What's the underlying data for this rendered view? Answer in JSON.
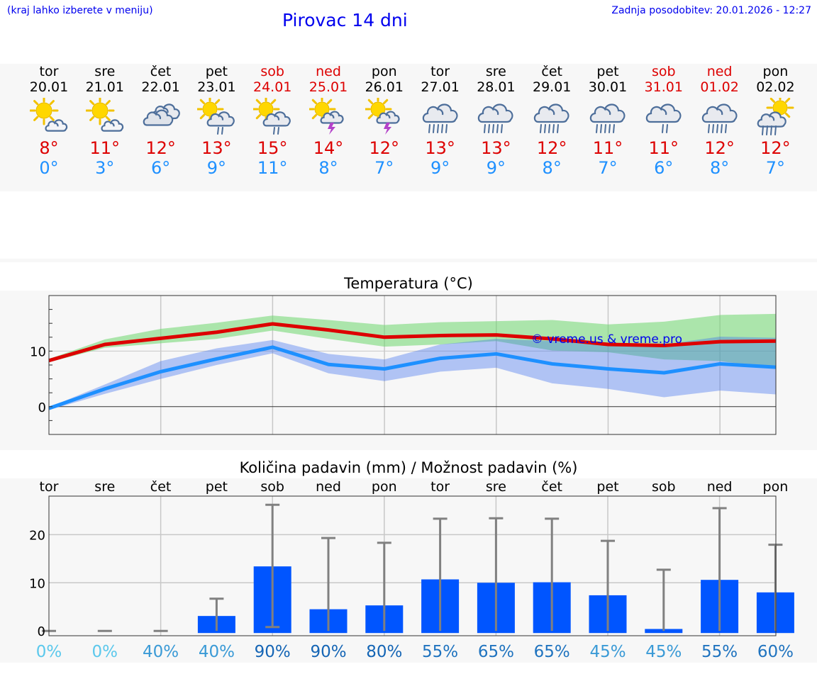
{
  "header": {
    "hint": "(kraj lahko izberete v meniju)",
    "title": "Pirovac 14 dni",
    "updated": "Zadnja posodobitev: 20.01.2026 - 12:27"
  },
  "colors": {
    "max": "#dd0000",
    "min": "#1e90ff",
    "link": "#0000ee",
    "bar": "#0055ff"
  },
  "days": [
    {
      "name": "tor",
      "date": "20.01",
      "icon": "partly-sunny-icon",
      "max": "8°",
      "min": "0°",
      "weekend": false
    },
    {
      "name": "sre",
      "date": "21.01",
      "icon": "partly-sunny-icon",
      "max": "11°",
      "min": "3°",
      "weekend": false
    },
    {
      "name": "čet",
      "date": "22.01",
      "icon": "cloudy-icon",
      "max": "12°",
      "min": "6°",
      "weekend": false
    },
    {
      "name": "pet",
      "date": "23.01",
      "icon": "sun-rain-icon",
      "max": "13°",
      "min": "9°",
      "weekend": false
    },
    {
      "name": "sob",
      "date": "24.01",
      "icon": "sun-rain-icon",
      "max": "15°",
      "min": "11°",
      "weekend": true
    },
    {
      "name": "ned",
      "date": "25.01",
      "icon": "sun-thunder-icon",
      "max": "14°",
      "min": "8°",
      "weekend": true
    },
    {
      "name": "pon",
      "date": "26.01",
      "icon": "sun-thunder-icon",
      "max": "12°",
      "min": "7°",
      "weekend": false
    },
    {
      "name": "tor",
      "date": "27.01",
      "icon": "rain-icon",
      "max": "13°",
      "min": "9°",
      "weekend": false
    },
    {
      "name": "sre",
      "date": "28.01",
      "icon": "rain-icon",
      "max": "13°",
      "min": "9°",
      "weekend": false
    },
    {
      "name": "čet",
      "date": "29.01",
      "icon": "rain-icon",
      "max": "12°",
      "min": "8°",
      "weekend": false
    },
    {
      "name": "pet",
      "date": "30.01",
      "icon": "rain-icon",
      "max": "11°",
      "min": "7°",
      "weekend": false
    },
    {
      "name": "sob",
      "date": "31.01",
      "icon": "light-rain-icon",
      "max": "11°",
      "min": "6°",
      "weekend": true
    },
    {
      "name": "ned",
      "date": "01.02",
      "icon": "rain-icon",
      "max": "12°",
      "min": "8°",
      "weekend": true
    },
    {
      "name": "pon",
      "date": "02.02",
      "icon": "sun-heavy-rain-icon",
      "max": "12°",
      "min": "7°",
      "weekend": false
    }
  ],
  "chart_data": [
    {
      "type": "line",
      "title": "Temperatura (°C)",
      "watermark": "© vreme.us & vreme.pro",
      "categories": [
        "20.01",
        "21.01",
        "22.01",
        "23.01",
        "24.01",
        "25.01",
        "26.01",
        "27.01",
        "28.01",
        "29.01",
        "30.01",
        "31.01",
        "01.02",
        "02.02"
      ],
      "ylim": [
        -5,
        20
      ],
      "yticks": [
        "0",
        "10"
      ],
      "series": [
        {
          "name": "max",
          "values": [
            8.3,
            11.2,
            12.3,
            13.4,
            14.9,
            13.8,
            12.5,
            12.8,
            12.9,
            12.2,
            11.2,
            11.0,
            11.7,
            11.8
          ]
        },
        {
          "name": "min",
          "values": [
            -0.3,
            3.2,
            6.3,
            8.6,
            10.7,
            7.6,
            6.8,
            8.7,
            9.5,
            7.7,
            6.8,
            6.1,
            7.7,
            7.1
          ]
        },
        {
          "name": "max_range_high",
          "values": [
            8.6,
            12.1,
            14.0,
            15.1,
            16.4,
            15.6,
            14.7,
            15.2,
            15.4,
            15.6,
            14.8,
            15.3,
            16.5,
            16.7
          ]
        },
        {
          "name": "max_range_low",
          "values": [
            8.0,
            10.6,
            11.4,
            12.2,
            13.7,
            12.2,
            10.8,
            11.2,
            11.8,
            10.1,
            9.8,
            8.5,
            8.2,
            6.9
          ]
        },
        {
          "name": "min_range_high",
          "values": [
            -0.1,
            4.0,
            8.2,
            10.5,
            12.0,
            9.5,
            8.5,
            11.2,
            12.2,
            11.8,
            11.3,
            11.2,
            12.6,
            12.4
          ]
        },
        {
          "name": "min_range_low",
          "values": [
            -0.6,
            2.3,
            5.0,
            7.5,
            9.6,
            6.0,
            4.6,
            6.3,
            7.0,
            4.2,
            3.2,
            1.7,
            2.9,
            2.2
          ]
        }
      ]
    },
    {
      "type": "bar",
      "title": "Količina padavin (mm) / Možnost padavin (%)",
      "categories": [
        "tor",
        "sre",
        "čet",
        "pet",
        "sob",
        "ned",
        "pon",
        "tor",
        "sre",
        "čet",
        "pet",
        "sob",
        "ned",
        "pon"
      ],
      "ylim": [
        -1,
        28
      ],
      "yticks": [
        "0",
        "10",
        "20"
      ],
      "values": [
        0,
        0,
        0,
        3.1,
        13.4,
        4.5,
        5.3,
        10.7,
        10.0,
        10.1,
        7.4,
        0.4,
        10.6,
        8.0
      ],
      "error_low": [
        0,
        0,
        0,
        0,
        0.8,
        0,
        0,
        0,
        0,
        0,
        0,
        0,
        0,
        0
      ],
      "error_high": [
        0,
        0,
        0,
        6.7,
        26.2,
        19.3,
        18.3,
        23.3,
        23.4,
        23.3,
        18.7,
        12.7,
        25.5,
        17.9
      ],
      "probabilities": [
        {
          "label": "0%",
          "color": "#5bc8ec"
        },
        {
          "label": "0%",
          "color": "#5bc8ec"
        },
        {
          "label": "40%",
          "color": "#3a9ad6"
        },
        {
          "label": "40%",
          "color": "#3a9ad6"
        },
        {
          "label": "90%",
          "color": "#1565b5"
        },
        {
          "label": "90%",
          "color": "#1565b5"
        },
        {
          "label": "80%",
          "color": "#1565b5"
        },
        {
          "label": "55%",
          "color": "#1f73bf"
        },
        {
          "label": "65%",
          "color": "#1f73bf"
        },
        {
          "label": "65%",
          "color": "#1f73bf"
        },
        {
          "label": "45%",
          "color": "#3a9ad6"
        },
        {
          "label": "45%",
          "color": "#3a9ad6"
        },
        {
          "label": "55%",
          "color": "#1f73bf"
        },
        {
          "label": "60%",
          "color": "#1f73bf"
        }
      ]
    }
  ]
}
